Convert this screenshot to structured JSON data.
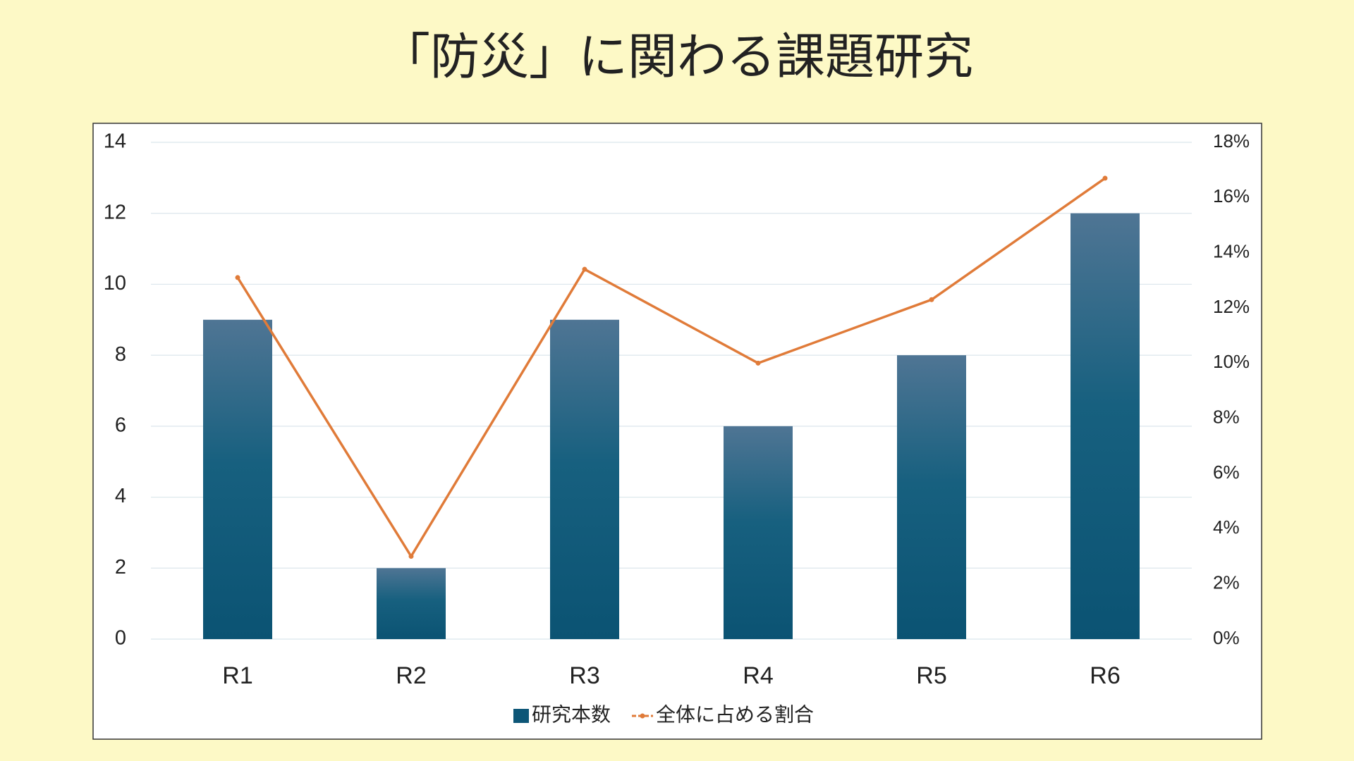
{
  "chart_data": {
    "type": "bar",
    "title": "「防災」に関わる課題研究",
    "categories": [
      "R1",
      "R2",
      "R3",
      "R4",
      "R5",
      "R6"
    ],
    "series": [
      {
        "name": "研究本数",
        "type": "bar",
        "color": "#0d5677",
        "values": [
          9,
          2,
          9,
          6,
          8,
          12
        ]
      },
      {
        "name": "全体に占める割合",
        "type": "line",
        "axis": "y2",
        "color": "#e07b39",
        "values": [
          13.1,
          3.0,
          13.4,
          10.0,
          12.3,
          16.7
        ]
      }
    ],
    "ylim": [
      0,
      14
    ],
    "yticks": [
      0,
      2,
      4,
      6,
      8,
      10,
      12,
      14
    ],
    "y2lim": [
      0,
      18
    ],
    "y2ticks": [
      {
        "value": 0,
        "label": "0%"
      },
      {
        "value": 2,
        "label": "2%"
      },
      {
        "value": 4,
        "label": "4%"
      },
      {
        "value": 6,
        "label": "6%"
      },
      {
        "value": 8,
        "label": "8%"
      },
      {
        "value": 10,
        "label": "10%"
      },
      {
        "value": 12,
        "label": "12%"
      },
      {
        "value": 14,
        "label": "14%"
      },
      {
        "value": 16,
        "label": "16%"
      },
      {
        "value": 18,
        "label": "18%"
      }
    ],
    "grid": true,
    "legend": "bottom"
  }
}
